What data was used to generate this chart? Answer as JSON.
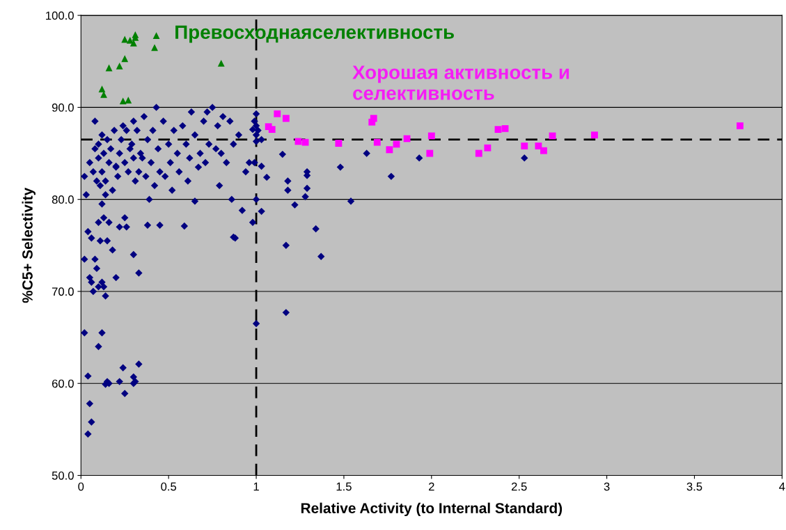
{
  "chart_data": {
    "type": "scatter",
    "xlabel": "Relative Activity (to Internal Standard)",
    "ylabel": "%C5+ Selectivity",
    "xlim": [
      0,
      4
    ],
    "xticks": [
      {
        "value": 0,
        "label": "0"
      },
      0.5,
      {
        "value": 1,
        "label": "1"
      },
      1.5,
      {
        "value": 2,
        "label": "2"
      },
      2.5,
      {
        "value": 3,
        "label": "3"
      },
      3.5,
      {
        "value": 4,
        "label": "4"
      }
    ],
    "ylim": [
      50,
      100
    ],
    "yticks": [
      {
        "value": 50,
        "label": "50.0"
      },
      {
        "value": 60,
        "label": "60.0"
      },
      {
        "value": 70,
        "label": "70.0"
      },
      {
        "value": 80,
        "label": "80.0"
      },
      {
        "value": 90,
        "label": "90.0"
      },
      {
        "value": 100,
        "label": "100.0"
      }
    ],
    "grid": "y",
    "legend": false,
    "ref_lines": [
      {
        "axis": "x",
        "value": 1,
        "color": "#000000",
        "line_style": "dashed"
      },
      {
        "axis": "y",
        "value": 86.5,
        "color": "#000000",
        "line_style": "dashed"
      }
    ],
    "annotations": [
      "Превосходнаяселективность",
      "Хорошая активность и\nселективность"
    ],
    "series": [
      {
        "color": "#000080",
        "marker": "diamond",
        "x": [
          0.08,
          0.02,
          0.03,
          0.05,
          0.07,
          0.08,
          0.09,
          0.1,
          0.1,
          0.11,
          0.12,
          0.12,
          0.13,
          0.14,
          0.15,
          0.16,
          0.17,
          0.18,
          0.19,
          0.2,
          0.21,
          0.22,
          0.23,
          0.24,
          0.25,
          0.26,
          0.27,
          0.28,
          0.29,
          0.3,
          0.3,
          0.31,
          0.32,
          0.33,
          0.34,
          0.35,
          0.36,
          0.37,
          0.38,
          0.39,
          0.4,
          0.41,
          0.42,
          0.43,
          0.44,
          0.45,
          0.47,
          0.48,
          0.5,
          0.51,
          0.52,
          0.53,
          0.55,
          0.56,
          0.58,
          0.6,
          0.61,
          0.62,
          0.63,
          0.65,
          0.67,
          0.68,
          0.7,
          0.71,
          0.72,
          0.73,
          0.75,
          0.77,
          0.78,
          0.79,
          0.8,
          0.81,
          0.83,
          0.85,
          0.86,
          0.87,
          0.88,
          0.9,
          0.92,
          0.94,
          0.96,
          0.98,
          0.04,
          0.05,
          0.06,
          0.08,
          0.09,
          0.1,
          0.11,
          0.12,
          0.13,
          0.14,
          0.15,
          0.16,
          0.18,
          0.2,
          0.22,
          0.25,
          0.26,
          0.3,
          0.33,
          0.38,
          0.45,
          0.59,
          0.65,
          0.07,
          0.1,
          0.06,
          0.13,
          0.14,
          0.12,
          0.02,
          0.02,
          0.04,
          0.12,
          0.1,
          0.15,
          0.16,
          0.24,
          0.3,
          0.31,
          0.33,
          0.22,
          0.25,
          0.05,
          0.06,
          0.04,
          0.87,
          0.3,
          0.98,
          0.14,
          0.2,
          1.0,
          0.99,
          1.0,
          1.01,
          1.0,
          1.03,
          1.0,
          0.99,
          1.03,
          1.06,
          1.0,
          1.03,
          1.0,
          1.15,
          1.17,
          1.17,
          1.18,
          1.18,
          1.22,
          1.29,
          1.29,
          1.29,
          1.28,
          1.34,
          1.37,
          1.48,
          1.54,
          1.63,
          1.77,
          1.93,
          2.53
        ],
        "values": [
          88.5,
          82.5,
          80.5,
          84.0,
          83.0,
          85.5,
          82.0,
          86.0,
          84.5,
          81.5,
          87.0,
          83.0,
          85.0,
          82.0,
          86.5,
          84.0,
          85.5,
          81.0,
          87.5,
          83.5,
          82.5,
          85.0,
          86.5,
          88.0,
          84.0,
          87.5,
          83.0,
          85.5,
          86.0,
          84.5,
          88.5,
          82.0,
          87.5,
          83.0,
          85.0,
          84.5,
          89.0,
          82.5,
          86.5,
          80.0,
          84.0,
          87.5,
          81.5,
          90.0,
          85.5,
          83.0,
          88.5,
          82.5,
          86.0,
          84.0,
          81.0,
          87.5,
          85.0,
          83.0,
          88.0,
          86.0,
          82.0,
          84.5,
          89.5,
          87.0,
          83.5,
          85.0,
          88.5,
          84.0,
          89.5,
          86.0,
          90.0,
          85.5,
          88.0,
          81.5,
          85.0,
          89.0,
          84.0,
          88.5,
          80.0,
          86.0,
          75.8,
          87.0,
          78.8,
          83.0,
          84.0,
          77.5,
          76.5,
          71.5,
          71.0,
          73.5,
          72.5,
          77.5,
          75.5,
          79.5,
          78.0,
          80.5,
          75.5,
          77.5,
          74.5,
          71.5,
          77.0,
          78.0,
          77.0,
          74.0,
          72.0,
          77.2,
          77.2,
          77.1,
          79.8,
          70.0,
          70.5,
          75.8,
          70.5,
          69.5,
          71.0,
          73.5,
          65.5,
          60.8,
          65.5,
          64.0,
          60.2,
          60.0,
          61.7,
          60.7,
          60.2,
          62.1,
          60.2,
          58.9,
          57.8,
          55.8,
          54.5,
          75.9,
          60.0,
          87.6,
          59.9,
          83.6,
          89.3,
          88.5,
          88.0,
          87.5,
          87.0,
          86.5,
          86.3,
          84.0,
          83.6,
          82.4,
          80.0,
          78.7,
          66.5,
          84.9,
          75.0,
          67.7,
          82.0,
          81.0,
          79.4,
          83.0,
          82.6,
          81.2,
          80.3,
          76.8,
          73.8,
          83.5,
          79.8,
          85.0,
          82.5,
          84.5,
          84.5
        ]
      },
      {
        "color": "#008000",
        "marker": "triangle",
        "x": [
          0.12,
          0.13,
          0.16,
          0.22,
          0.25,
          0.24,
          0.27,
          0.25,
          0.28,
          0.3,
          0.31,
          0.31,
          0.42,
          0.43,
          0.8
        ],
        "values": [
          92.0,
          91.4,
          94.3,
          94.5,
          95.3,
          90.7,
          90.8,
          97.4,
          97.3,
          97.0,
          97.6,
          97.9,
          96.5,
          97.8,
          94.8
        ]
      },
      {
        "color": "#ff00ff",
        "marker": "square",
        "x": [
          1.07,
          1.09,
          1.12,
          1.17,
          1.24,
          1.28,
          1.47,
          1.66,
          1.67,
          1.69,
          1.76,
          1.8,
          1.86,
          1.99,
          2.0,
          2.27,
          2.32,
          2.38,
          2.42,
          2.53,
          2.61,
          2.64,
          2.69,
          2.93,
          3.76
        ],
        "values": [
          87.9,
          87.6,
          89.3,
          88.8,
          86.3,
          86.2,
          86.1,
          88.4,
          88.8,
          86.2,
          85.4,
          86.0,
          86.6,
          85.0,
          86.9,
          85.0,
          85.6,
          87.6,
          87.7,
          85.8,
          85.8,
          85.3,
          86.9,
          87.0,
          88.0
        ]
      }
    ]
  }
}
